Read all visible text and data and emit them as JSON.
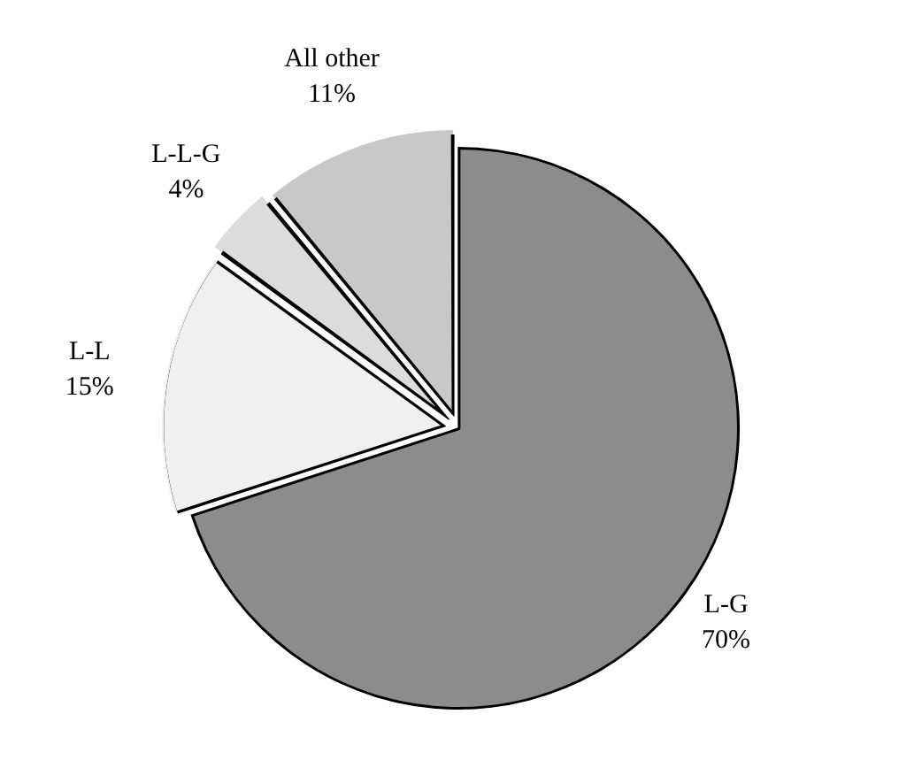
{
  "chart_data": {
    "type": "pie",
    "categories": [
      "L-G",
      "L-L",
      "L-L-G",
      "All other"
    ],
    "values": [
      70,
      15,
      4,
      11
    ],
    "value_labels": [
      "70%",
      "15%",
      "4%",
      "11%"
    ],
    "colors": [
      "#8c8c8c",
      "#f0f0f0",
      "#dcdcdc",
      "#c8c8c8"
    ],
    "legend": false
  }
}
